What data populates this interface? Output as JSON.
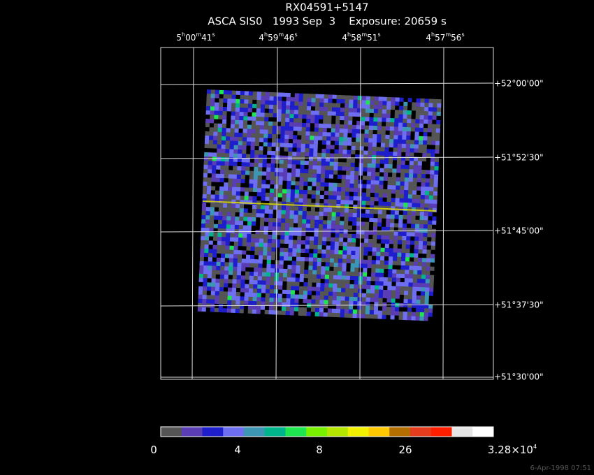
{
  "header": {
    "title": "RX04591+5147",
    "subtitle": "ASCA SIS0   1993 Sep  3    Exposure: 20659 s"
  },
  "ra_labels": [
    [
      "5",
      "h",
      "00",
      "m",
      "41",
      "s"
    ],
    [
      "4",
      "h",
      "59",
      "m",
      "46",
      "s"
    ],
    [
      "4",
      "h",
      "58",
      "m",
      "51",
      "s"
    ],
    [
      "4",
      "h",
      "57",
      "m",
      "56",
      "s"
    ]
  ],
  "dec_labels": [
    "+52°00'00\"",
    "+51°52'30\"",
    "+51°45'00\"",
    "+51°37'30\"",
    "+51°30'00\""
  ],
  "colorbar": {
    "colors": [
      "#555555",
      "#5a3cb4",
      "#1e1ecd",
      "#6e6ef0",
      "#3c96b4",
      "#00b48c",
      "#1ee650",
      "#78f000",
      "#b4e600",
      "#f0f000",
      "#ffc800",
      "#b46e00",
      "#e63c1e",
      "#ff1e00",
      "#e6e6e6",
      "#ffffff"
    ],
    "labels": [
      [
        "0"
      ],
      [
        "4"
      ],
      [
        "8"
      ],
      [
        "26"
      ],
      [
        "3.28×10",
        "4"
      ]
    ]
  },
  "stamp": "6-Apr-1998 07:51"
}
